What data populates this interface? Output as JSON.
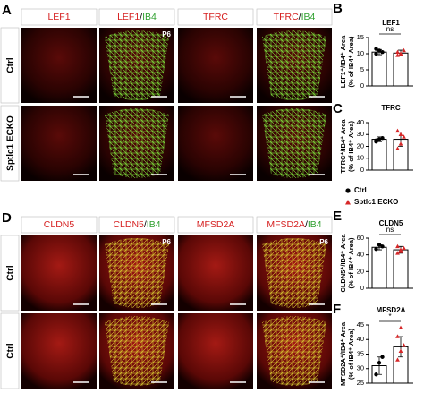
{
  "panels": [
    {
      "letter": "A",
      "headers": [
        {
          "parts": [
            "LEF1"
          ]
        },
        {
          "parts": [
            "LEF1",
            "/",
            "IB4"
          ]
        },
        {
          "parts": [
            "TFRC"
          ]
        },
        {
          "parts": [
            "TFRC",
            "/",
            "IB4"
          ]
        }
      ],
      "rows": [
        "Ctrl",
        "Sptlc1 ECKO"
      ],
      "age": "P6"
    },
    {
      "letter": "D",
      "headers": [
        {
          "parts": [
            "CLDN5"
          ]
        },
        {
          "parts": [
            "CLDN5",
            "/",
            "IB4"
          ]
        },
        {
          "parts": [
            "MFSD2A"
          ]
        },
        {
          "parts": [
            "MFSD2A",
            "/",
            "IB4"
          ]
        }
      ],
      "rows": [
        "Ctrl",
        "Ctrl"
      ],
      "age": "P6"
    }
  ],
  "legend": [
    {
      "name": "Ctrl",
      "color": "#000000",
      "marker": "circle"
    },
    {
      "name": "Sptlc1 ECKO",
      "color": "#d62728",
      "marker": "triangle"
    }
  ],
  "chart_data": [
    {
      "type": "bar",
      "letter": "B",
      "title": "LEF1",
      "ylabel": [
        "LEF1⁺/IB4⁺ Area",
        "(% of IB4⁺ Area)"
      ],
      "values": [
        10.5,
        10.2
      ],
      "errors": [
        0.8,
        0.9
      ],
      "points": [
        [
          10,
          11,
          10.5,
          11.5
        ],
        [
          9.5,
          10,
          11,
          10.5,
          9.8
        ]
      ],
      "significance": "ns",
      "ylim": [
        0,
        15
      ],
      "yticks": [
        0,
        5,
        10,
        15
      ]
    },
    {
      "type": "bar",
      "letter": "C",
      "title": "TFRC",
      "ylabel": [
        "TFRC⁺/IB4⁺ Area",
        "(% of IB4⁺ Area)"
      ],
      "values": [
        26,
        26
      ],
      "errors": [
        2,
        6
      ],
      "points": [
        [
          24,
          26,
          27,
          25
        ],
        [
          18,
          22,
          28,
          33,
          30
        ]
      ],
      "ylim": [
        0,
        40
      ],
      "yticks": [
        0,
        10,
        20,
        30,
        40
      ]
    },
    {
      "type": "bar",
      "letter": "E",
      "title": "CLDN5",
      "ylabel": [
        "CLDN5⁺/IB4⁺ Area",
        "(% of IB4⁺ Area)"
      ],
      "values": [
        49,
        46
      ],
      "errors": [
        3,
        4
      ],
      "points": [
        [
          47,
          52,
          50
        ],
        [
          42,
          44,
          48,
          50,
          46
        ]
      ],
      "significance": "ns",
      "ylim": [
        0,
        60
      ],
      "yticks": [
        0,
        20,
        40,
        60
      ]
    },
    {
      "type": "bar",
      "letter": "F",
      "title": "MFSD2A",
      "ylabel": [
        "MFSD2A⁺/IB4⁺ Area",
        "(% of IB4⁺ Area)"
      ],
      "values": [
        31,
        37.5
      ],
      "errors": [
        3,
        3.5
      ],
      "points": [
        [
          28,
          32,
          34
        ],
        [
          33,
          36,
          38,
          41,
          44
        ]
      ],
      "significance": "*",
      "ylim": [
        25,
        45
      ],
      "yticks": [
        25,
        30,
        35,
        40,
        45
      ]
    }
  ]
}
